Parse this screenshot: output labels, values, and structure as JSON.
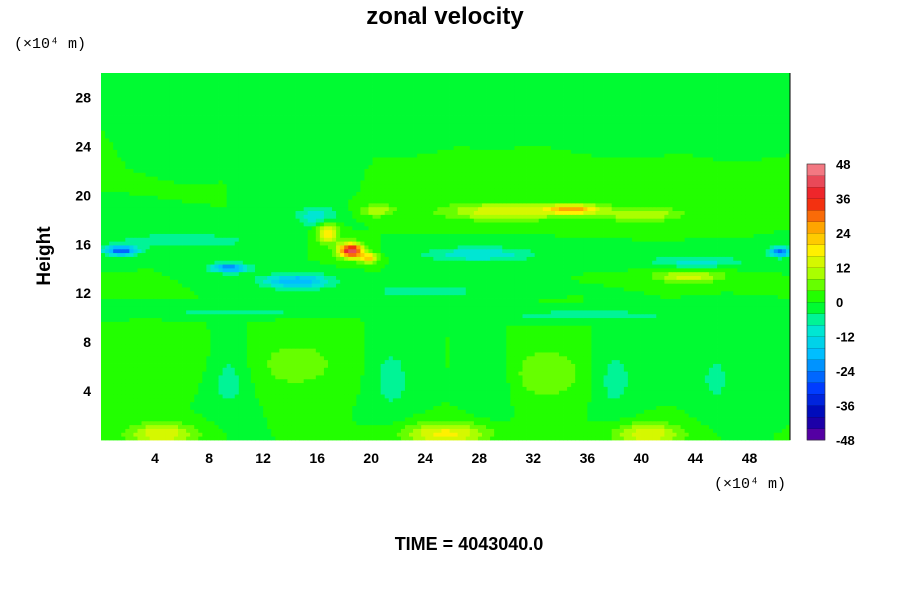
{
  "chart_data": {
    "type": "heatmap",
    "title": "zonal velocity",
    "ylabel": "Height",
    "xlabel": "",
    "x_unit_label": "(×10⁴ m)",
    "y_unit_label": "(×10⁴ m)",
    "footer": "TIME = 4043040.0",
    "xlim": [
      0,
      51
    ],
    "ylim": [
      0,
      30
    ],
    "x_ticks": [
      4,
      8,
      12,
      16,
      20,
      24,
      28,
      32,
      36,
      40,
      44,
      48
    ],
    "y_ticks": [
      4,
      8,
      12,
      16,
      20,
      24,
      28
    ],
    "colorbar": {
      "min": -48,
      "max": 48,
      "step": 4,
      "tick_labels": [
        48,
        36,
        24,
        12,
        0,
        -12,
        -24,
        -36,
        -48
      ]
    },
    "field_features": [
      {
        "x": 18.5,
        "y": 15.5,
        "value": 44,
        "rx": 0.9,
        "ry": 0.6
      },
      {
        "x": 19.8,
        "y": 14.9,
        "value": 22,
        "rx": 0.7,
        "ry": 0.4
      },
      {
        "x": 16.8,
        "y": 17.0,
        "value": 20,
        "rx": 0.8,
        "ry": 0.9
      },
      {
        "x": 20.5,
        "y": 18.8,
        "value": 12,
        "rx": 1.2,
        "ry": 0.5
      },
      {
        "x": 30.0,
        "y": 18.7,
        "value": 16,
        "rx": 4.5,
        "ry": 0.7
      },
      {
        "x": 35.0,
        "y": 18.9,
        "value": 22,
        "rx": 2.0,
        "ry": 0.4
      },
      {
        "x": 40.0,
        "y": 18.5,
        "value": 12,
        "rx": 3.0,
        "ry": 0.6
      },
      {
        "x": 43.5,
        "y": 13.4,
        "value": 14,
        "rx": 2.5,
        "ry": 0.5
      },
      {
        "x": 1.5,
        "y": 15.5,
        "value": -28,
        "rx": 1.2,
        "ry": 0.4
      },
      {
        "x": 50.3,
        "y": 15.4,
        "value": -26,
        "rx": 0.8,
        "ry": 0.4
      },
      {
        "x": 9.5,
        "y": 14.1,
        "value": -24,
        "rx": 1.4,
        "ry": 0.4
      },
      {
        "x": 14.5,
        "y": 13.0,
        "value": -20,
        "rx": 2.5,
        "ry": 0.6
      },
      {
        "x": 16.0,
        "y": 18.3,
        "value": -12,
        "rx": 1.5,
        "ry": 0.8
      },
      {
        "x": 28.0,
        "y": 15.2,
        "value": -12,
        "rx": 4.0,
        "ry": 0.6
      },
      {
        "x": 44.0,
        "y": 14.6,
        "value": -10,
        "rx": 3.5,
        "ry": 0.5
      },
      {
        "x": 6.0,
        "y": 16.3,
        "value": -8,
        "rx": 5.0,
        "ry": 0.6
      },
      {
        "x": 24.0,
        "y": 12.2,
        "value": -8,
        "rx": 4.0,
        "ry": 0.5
      },
      {
        "x": 36.0,
        "y": 10.2,
        "value": -8,
        "rx": 6.0,
        "ry": 0.4
      },
      {
        "x": 10.0,
        "y": 10.5,
        "value": -6,
        "rx": 6.0,
        "ry": 0.4
      },
      {
        "x": 4.5,
        "y": 0.5,
        "value": 16,
        "rx": 2.5,
        "ry": 0.9
      },
      {
        "x": 25.5,
        "y": 0.5,
        "value": 18,
        "rx": 3.0,
        "ry": 0.9
      },
      {
        "x": 40.5,
        "y": 0.5,
        "value": 16,
        "rx": 2.5,
        "ry": 0.9
      },
      {
        "x": 14.5,
        "y": 6.2,
        "value": 6,
        "rx": 3.5,
        "ry": 2.2
      },
      {
        "x": 33.0,
        "y": 5.5,
        "value": 7,
        "rx": 3.0,
        "ry": 2.3
      },
      {
        "x": 5.0,
        "y": 6.5,
        "value": 3,
        "rx": 3.0,
        "ry": 2.0
      },
      {
        "x": 9.5,
        "y": 5.0,
        "value": -6,
        "rx": 1.5,
        "ry": 2.8
      },
      {
        "x": 21.5,
        "y": 5.0,
        "value": -6,
        "rx": 1.5,
        "ry": 2.8
      },
      {
        "x": 29.0,
        "y": 5.0,
        "value": -5,
        "rx": 1.4,
        "ry": 2.6
      },
      {
        "x": 38.0,
        "y": 5.0,
        "value": -6,
        "rx": 1.5,
        "ry": 2.8
      },
      {
        "x": 45.5,
        "y": 5.0,
        "value": -5,
        "rx": 1.4,
        "ry": 2.6
      }
    ]
  }
}
